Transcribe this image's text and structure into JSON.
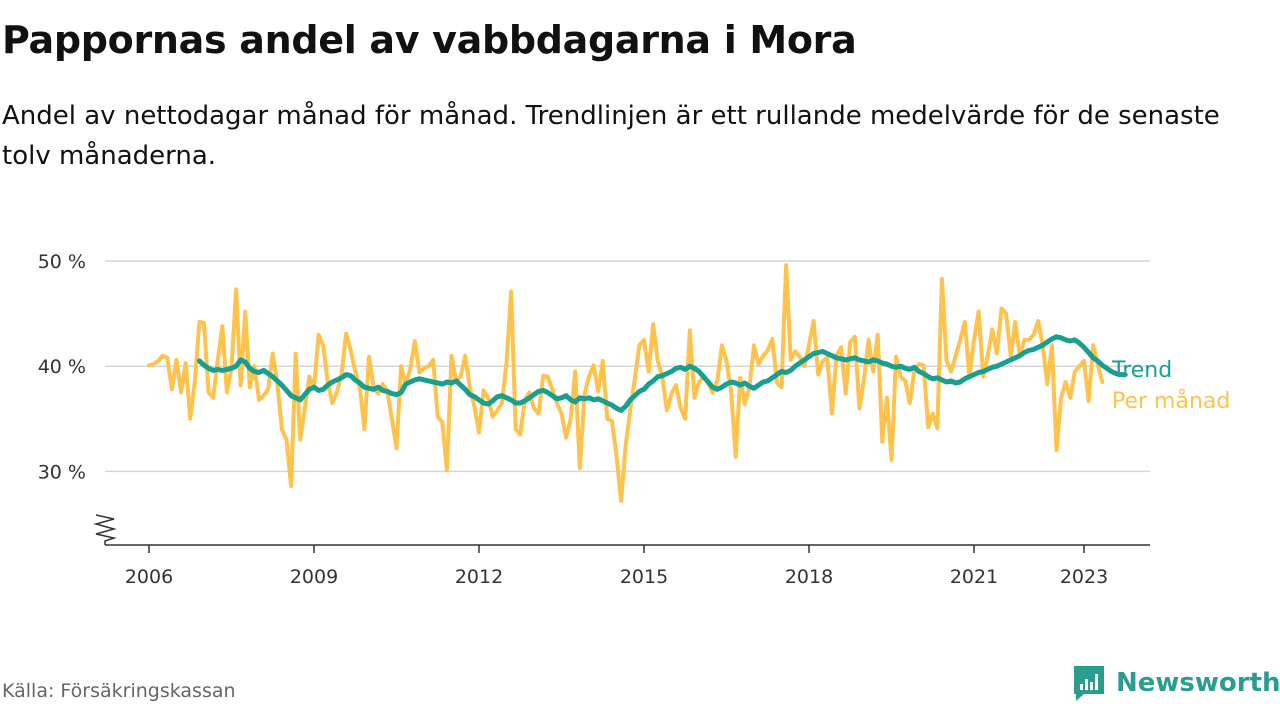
{
  "title": "Pappornas andel av vabbdagarna i Mora",
  "subtitle": "Andel av nettodagar månad för månad. Trendlinjen är ett rullande medelvärde för de senaste tolv månaderna.",
  "source": "Källa: Försäkringskassan",
  "brand": {
    "name": "Newsworthy",
    "icon": "newsworthy-logo-icon",
    "color": "#2a9d8f"
  },
  "chart_data": {
    "type": "line",
    "x_axis": {
      "ticks": [
        2006,
        2009,
        2012,
        2015,
        2018,
        2021,
        2023
      ],
      "tick_labels": [
        "2006",
        "2009",
        "2012",
        "2015",
        "2018",
        "2021",
        "2023"
      ],
      "range": [
        2005.2,
        2024.2
      ]
    },
    "y_axis": {
      "ticks": [
        30,
        40,
        50
      ],
      "tick_labels": [
        "30 %",
        "40 %",
        "50 %"
      ],
      "range": [
        23,
        52
      ],
      "broken_axis": true
    },
    "grid": "horizontal",
    "series": [
      {
        "name": "Per månad",
        "color": "#ffc34d",
        "start": "2006-01",
        "values": [
          40.1,
          40.2,
          40.5,
          41.0,
          40.8,
          37.8,
          40.6,
          37.5,
          40.3,
          35.0,
          38.5,
          44.2,
          44.1,
          37.5,
          37.0,
          40.5,
          43.8,
          37.5,
          39.8,
          47.3,
          38.2,
          45.2,
          38.0,
          40.0,
          36.8,
          37.2,
          37.8,
          41.2,
          38.4,
          34.0,
          33.0,
          28.6,
          41.2,
          33.0,
          36.0,
          39.0,
          38.0,
          43.0,
          42.0,
          38.5,
          36.5,
          37.5,
          39.2,
          43.1,
          41.5,
          39.5,
          38.0,
          34.0,
          40.9,
          38.0,
          37.4,
          38.3,
          37.6,
          35.0,
          32.2,
          40.0,
          38.3,
          39.7,
          42.4,
          39.4,
          39.8,
          40.0,
          40.6,
          35.2,
          34.7,
          30.1,
          41.0,
          38.6,
          39.0,
          41.0,
          38.0,
          36.2,
          33.7,
          37.7,
          37.0,
          35.2,
          35.8,
          36.5,
          40.3,
          47.1,
          34.0,
          33.5,
          36.8,
          37.5,
          36.0,
          35.5,
          39.1,
          39.0,
          37.8,
          36.5,
          35.5,
          33.2,
          35.0,
          39.5,
          30.3,
          37.3,
          39.0,
          40.1,
          37.6,
          40.5,
          35.0,
          34.8,
          31.5,
          27.2,
          32.5,
          35.8,
          38.8,
          42.0,
          42.5,
          39.5,
          44.0,
          40.5,
          39.0,
          35.8,
          37.4,
          38.2,
          36.0,
          35.0,
          43.4,
          37.0,
          38.5,
          39.0,
          38.4,
          37.5,
          38.6,
          42.0,
          40.5,
          37.6,
          31.4,
          38.9,
          36.4,
          38.0,
          42.0,
          40.2,
          41.0,
          41.5,
          42.6,
          38.4,
          38.0,
          49.6,
          40.6,
          41.4,
          40.9,
          40.0,
          42.0,
          44.3,
          39.2,
          40.5,
          40.8,
          35.5,
          41.0,
          41.8,
          37.4,
          42.3,
          42.8,
          36.0,
          38.8,
          42.5,
          39.5,
          43.0,
          32.8,
          37.0,
          31.1,
          40.9,
          39.0,
          38.6,
          36.5,
          39.6,
          40.2,
          40.1,
          34.2,
          35.5,
          34.1,
          48.3,
          40.5,
          39.5,
          41.0,
          42.5,
          44.2,
          39.0,
          42.5,
          45.2,
          39.0,
          41.0,
          43.5,
          41.2,
          45.5,
          45.0,
          41.0,
          44.2,
          41.0,
          42.5,
          42.5,
          43.0,
          44.3,
          42.0,
          38.3,
          42.0,
          32.0,
          37.0,
          38.5,
          37.0,
          39.5,
          40.0,
          40.5,
          36.7,
          42.0,
          40.2,
          38.5
        ]
      },
      {
        "name": "Trend",
        "color": "#1a9e8f",
        "start": "2006-12",
        "values": [
          40.5,
          40.1,
          39.8,
          39.6,
          39.7,
          39.6,
          39.7,
          39.8,
          40.0,
          40.6,
          40.4,
          39.8,
          39.5,
          39.4,
          39.6,
          39.3,
          39.0,
          38.6,
          38.2,
          37.7,
          37.2,
          37.0,
          36.8,
          37.3,
          37.8,
          38.0,
          37.7,
          37.8,
          38.2,
          38.5,
          38.7,
          38.9,
          39.2,
          39.1,
          38.7,
          38.4,
          38.0,
          37.9,
          37.8,
          38.0,
          37.7,
          37.6,
          37.4,
          37.3,
          37.5,
          38.3,
          38.5,
          38.7,
          38.8,
          38.7,
          38.6,
          38.5,
          38.4,
          38.3,
          38.5,
          38.4,
          38.6,
          38.2,
          37.8,
          37.3,
          37.1,
          36.8,
          36.5,
          36.4,
          36.7,
          37.1,
          37.2,
          37.0,
          36.8,
          36.5,
          36.5,
          36.7,
          37.0,
          37.3,
          37.6,
          37.7,
          37.5,
          37.2,
          36.9,
          37.0,
          37.2,
          36.8,
          36.6,
          37.0,
          36.9,
          37.0,
          36.8,
          36.9,
          36.7,
          36.5,
          36.3,
          36.0,
          35.8,
          36.2,
          36.8,
          37.2,
          37.6,
          37.8,
          38.3,
          38.6,
          39.0,
          39.1,
          39.3,
          39.5,
          39.8,
          39.9,
          39.7,
          40.0,
          39.8,
          39.5,
          39.0,
          38.5,
          38.0,
          37.8,
          38.0,
          38.3,
          38.5,
          38.4,
          38.2,
          38.4,
          38.1,
          37.9,
          38.2,
          38.5,
          38.6,
          38.9,
          39.2,
          39.5,
          39.4,
          39.6,
          40.0,
          40.3,
          40.6,
          40.9,
          41.2,
          41.3,
          41.4,
          41.2,
          41.0,
          40.8,
          40.7,
          40.6,
          40.7,
          40.8,
          40.6,
          40.5,
          40.4,
          40.6,
          40.5,
          40.3,
          40.2,
          40.0,
          39.9,
          40.0,
          39.8,
          39.7,
          39.9,
          39.5,
          39.3,
          39.0,
          38.8,
          38.9,
          38.7,
          38.5,
          38.6,
          38.4,
          38.5,
          38.8,
          39.0,
          39.2,
          39.4,
          39.5,
          39.7,
          39.9,
          40.0,
          40.2,
          40.4,
          40.6,
          40.8,
          41.0,
          41.3,
          41.5,
          41.6,
          41.8,
          42.0,
          42.3,
          42.6,
          42.8,
          42.7,
          42.5,
          42.4,
          42.5,
          42.2,
          41.8,
          41.3,
          40.8,
          40.5,
          40.1,
          39.8,
          39.5,
          39.3,
          39.2,
          39.2
        ]
      }
    ]
  }
}
